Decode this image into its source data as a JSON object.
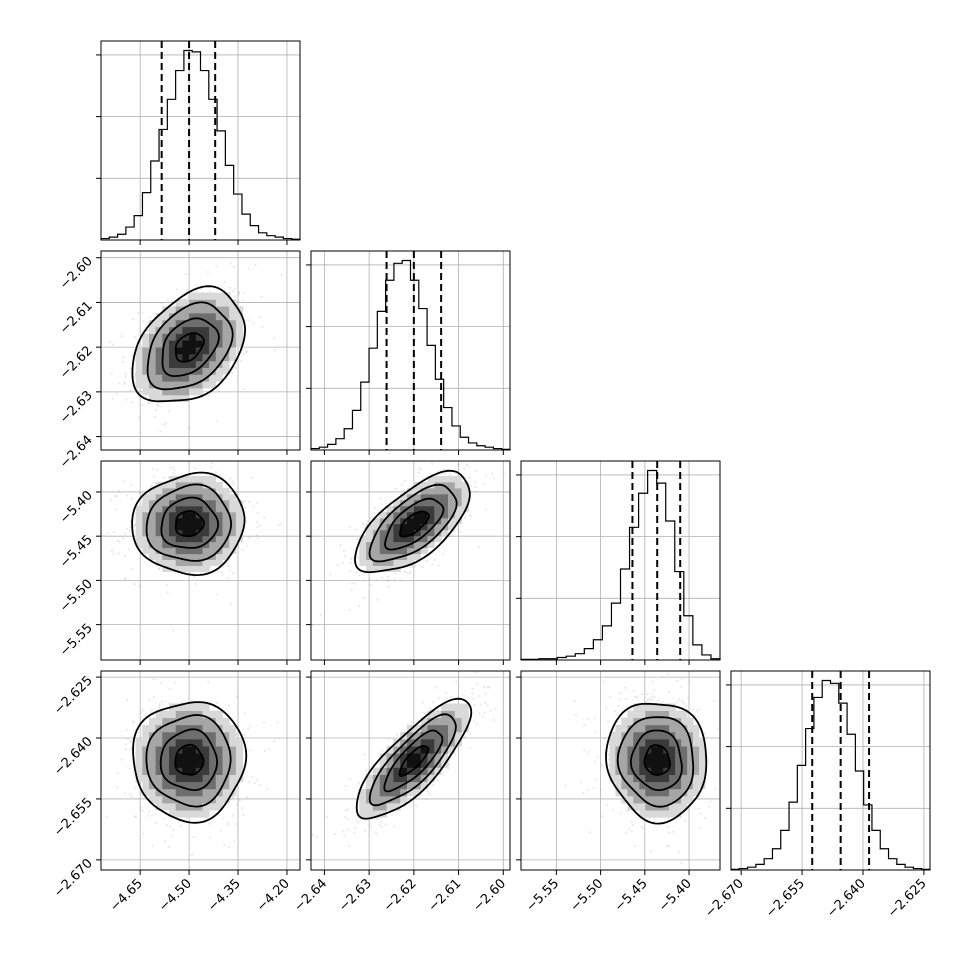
{
  "chart_data": {
    "type": "corner",
    "grid": true,
    "parameters": [
      {
        "range": [
          -4.77,
          -4.16
        ],
        "ticks": [
          -4.65,
          -4.5,
          -4.35,
          -4.2
        ],
        "tick_labels": [
          "−4.65",
          "−4.50",
          "−4.35",
          "−4.20"
        ],
        "quantiles": [
          -4.584,
          -4.5,
          -4.42
        ],
        "hist_values": [
          1,
          2,
          4,
          9,
          17,
          33,
          55,
          77,
          98,
          118,
          132,
          131,
          118,
          98,
          76,
          52,
          32,
          18,
          10,
          5,
          3,
          2,
          1,
          0.5
        ]
      },
      {
        "range": [
          -2.643,
          -2.5985
        ],
        "ticks": [
          -2.64,
          -2.63,
          -2.62,
          -2.61,
          -2.6
        ],
        "tick_labels": [
          "−2.64",
          "−2.63",
          "−2.62",
          "−2.61",
          "−2.60"
        ],
        "quantiles": [
          -2.6261,
          -2.62,
          -2.6139
        ],
        "hist_values": [
          1,
          2,
          4,
          8,
          15,
          28,
          48,
          72,
          98,
          120,
          132,
          134,
          120,
          100,
          74,
          50,
          30,
          17,
          9,
          5,
          3,
          2,
          1,
          0.5
        ]
      },
      {
        "range": [
          -5.59,
          -5.365
        ],
        "ticks": [
          -5.55,
          -5.5,
          -5.45,
          -5.4
        ],
        "tick_labels": [
          "−5.55",
          "−5.50",
          "−5.45",
          "−5.40"
        ],
        "quantiles": [
          -5.464,
          -5.436,
          -5.41
        ],
        "hist_values": [
          0.5,
          0.5,
          1,
          1,
          2,
          3,
          5,
          9,
          16,
          27,
          45,
          72,
          105,
          132,
          150,
          140,
          110,
          70,
          35,
          12,
          4,
          1
        ]
      },
      {
        "range": [
          -2.6725,
          -2.6235
        ],
        "ticks": [
          -2.67,
          -2.655,
          -2.64,
          -2.625
        ],
        "tick_labels": [
          "−2.670",
          "−2.655",
          "−2.640",
          "−2.625"
        ],
        "quantiles": [
          -2.6525,
          -2.6455,
          -2.6385
        ],
        "hist_values": [
          0.5,
          1,
          2,
          4,
          8,
          15,
          28,
          48,
          74,
          100,
          122,
          134,
          132,
          118,
          96,
          70,
          46,
          28,
          15,
          8,
          4,
          2,
          1,
          0.5
        ]
      }
    ],
    "pairs": [
      {
        "row": 1,
        "col": 0,
        "corr": 0.35
      },
      {
        "row": 2,
        "col": 0,
        "corr": 0.05
      },
      {
        "row": 2,
        "col": 1,
        "corr": 0.65
      },
      {
        "row": 3,
        "col": 0,
        "corr": 0.0
      },
      {
        "row": 3,
        "col": 1,
        "corr": 0.8
      },
      {
        "row": 3,
        "col": 2,
        "corr": -0.05
      }
    ],
    "contour_levels_sigma": [
      0.5,
      1.0,
      1.5,
      2.0
    ]
  }
}
